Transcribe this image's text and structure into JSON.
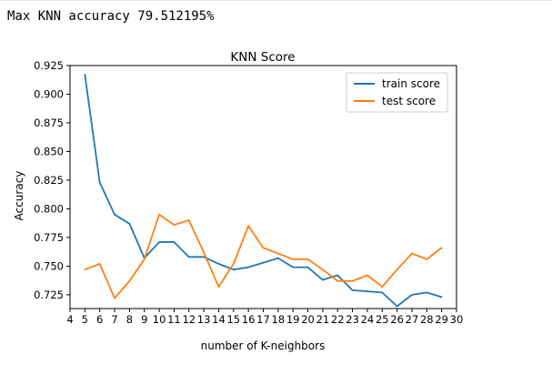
{
  "console": {
    "output": "Max KNN accuracy 79.512195%"
  },
  "colors": {
    "train": "#1f77b4",
    "test": "#ff7f0e"
  },
  "chart_data": {
    "type": "line",
    "title": "KNN Score",
    "xlabel": "number of K-neighbors",
    "ylabel": "Accuracy",
    "xlim": [
      4,
      30
    ],
    "ylim": [
      0.713,
      0.925
    ],
    "x_ticks": [
      4,
      5,
      6,
      7,
      8,
      9,
      10,
      11,
      12,
      13,
      14,
      15,
      16,
      17,
      18,
      19,
      20,
      21,
      22,
      23,
      24,
      25,
      26,
      27,
      28,
      29,
      30
    ],
    "y_ticks": [
      "0.725",
      "0.750",
      "0.775",
      "0.800",
      "0.825",
      "0.850",
      "0.875",
      "0.900",
      "0.925"
    ],
    "x": [
      5,
      6,
      7,
      8,
      9,
      10,
      11,
      12,
      13,
      14,
      15,
      16,
      17,
      18,
      19,
      20,
      21,
      22,
      23,
      24,
      25,
      26,
      27,
      28,
      29
    ],
    "series": [
      {
        "name": "train score",
        "color": "#1f77b4",
        "values": [
          0.917,
          0.823,
          0.795,
          0.787,
          0.757,
          0.771,
          0.771,
          0.758,
          0.758,
          0.752,
          0.747,
          0.749,
          0.753,
          0.757,
          0.749,
          0.749,
          0.738,
          0.742,
          0.729,
          0.728,
          0.727,
          0.715,
          0.725,
          0.727,
          0.723
        ]
      },
      {
        "name": "test score",
        "color": "#ff7f0e",
        "values": [
          0.747,
          0.752,
          0.722,
          0.737,
          0.756,
          0.795,
          0.786,
          0.79,
          0.762,
          0.732,
          0.752,
          0.785,
          0.766,
          0.761,
          0.756,
          0.756,
          0.747,
          0.737,
          0.737,
          0.742,
          0.732,
          0.747,
          0.761,
          0.756,
          0.766
        ]
      }
    ],
    "legend": "top-right",
    "grid": false
  }
}
